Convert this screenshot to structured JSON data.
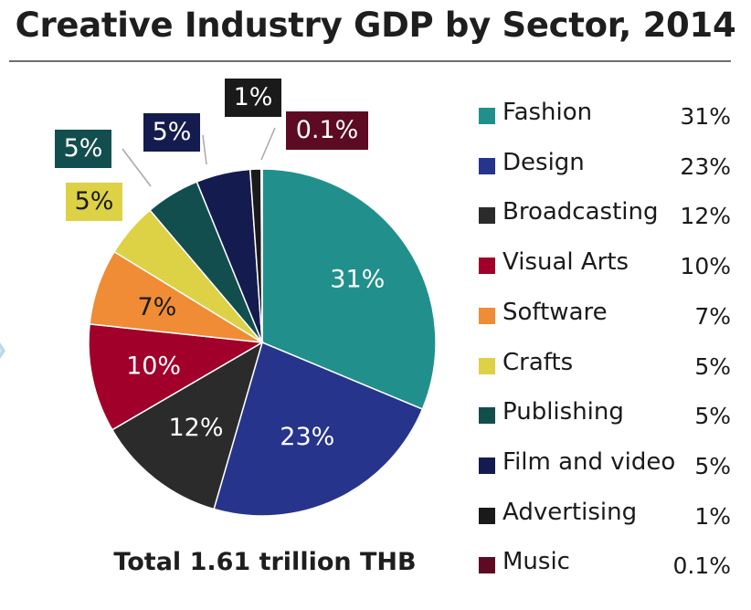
{
  "chart_data": {
    "type": "pie",
    "title": "Creative Industry GDP by Sector, 2014",
    "footnote": "Total 1.61 trillion THB",
    "slices": [
      {
        "label": "Fashion",
        "value": 31,
        "display": "31%",
        "color": "#21908d",
        "label_color": "#ffffff"
      },
      {
        "label": "Design",
        "value": 23,
        "display": "23%",
        "color": "#27348b",
        "label_color": "#ffffff"
      },
      {
        "label": "Broadcasting",
        "value": 12,
        "display": "12%",
        "color": "#2b2b2b",
        "label_color": "#ffffff"
      },
      {
        "label": "Visual Arts",
        "value": 10,
        "display": "10%",
        "color": "#a0002a",
        "label_color": "#ffffff"
      },
      {
        "label": "Software",
        "value": 7,
        "display": "7%",
        "color": "#ef8c35",
        "label_color": "#1a1a1a"
      },
      {
        "label": "Crafts",
        "value": 5,
        "display": "5%",
        "color": "#ddd145",
        "label_color": "#1a1a1a"
      },
      {
        "label": "Publishing",
        "value": 5,
        "display": "5%",
        "color": "#134e4f",
        "label_color": "#ffffff"
      },
      {
        "label": "Film and video",
        "value": 5,
        "display": "5%",
        "color": "#141c4f",
        "label_color": "#ffffff"
      },
      {
        "label": "Advertising",
        "value": 1,
        "display": "1%",
        "color": "#1a1a1a",
        "label_color": "#ffffff"
      },
      {
        "label": "Music",
        "value": 0.1,
        "display": "0.1%",
        "color": "#5c0b22",
        "label_color": "#ffffff"
      }
    ],
    "legend_position": "right"
  }
}
